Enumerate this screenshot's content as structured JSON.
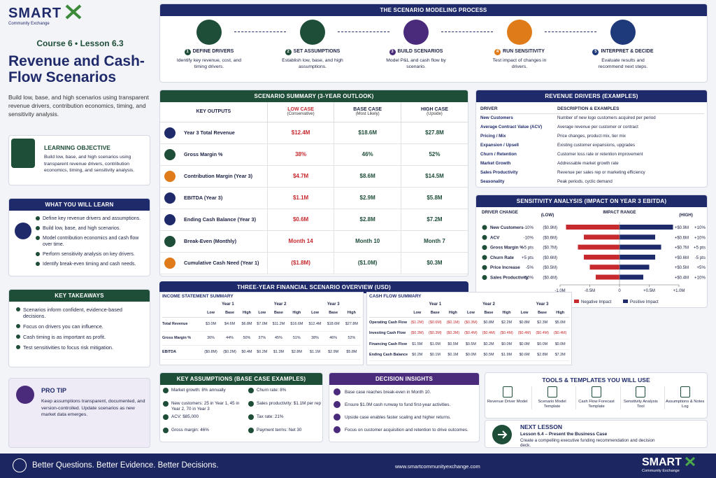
{
  "header": {
    "brand": "SMART",
    "brand_sub": "Community Exchange",
    "course": "Course 6 • Lesson 6.3",
    "title": "Revenue and Cash-Flow Scenarios",
    "intro": "Build low, base, and high scenarios using transparent revenue drivers, contribution economics, timing, and sensitivity analysis."
  },
  "objective": {
    "title": "LEARNING OBJECTIVE",
    "text": "Build low, base, and high scenarios using transparent revenue drivers, contribution economics, timing, and sensitivity analysis."
  },
  "learn": {
    "title": "WHAT YOU WILL LEARN",
    "items": [
      "Define key revenue drivers and assumptions.",
      "Build low, base, and high scenarios.",
      "Model contribution economics and cash flow over time.",
      "Perform sensitivity analysis on key drivers.",
      "Identify break-even timing and cash needs."
    ]
  },
  "takeaways": {
    "title": "KEY TAKEAWAYS",
    "items": [
      "Scenarios inform confident, evidence-based decisions.",
      "Focus on drivers you can influence.",
      "Cash timing is as important as profit.",
      "Test sensitivities to focus risk mitigation."
    ]
  },
  "tip": {
    "title": "PRO TIP",
    "text": "Keep assumptions transparent, documented, and version-controlled. Update scenarios as new market data emerges."
  },
  "process": {
    "title": "THE SCENARIO MODELING PROCESS",
    "steps": [
      {
        "num": 1,
        "title": "DEFINE DRIVERS",
        "text": "Identify key revenue, cost, and timing drivers."
      },
      {
        "num": 2,
        "title": "SET ASSUMPTIONS",
        "text": "Establish low, base, and high assumptions."
      },
      {
        "num": 3,
        "title": "BUILD SCENARIOS",
        "text": "Model P&L and cash flow by scenario."
      },
      {
        "num": 4,
        "title": "RUN SENSITIVITY",
        "text": "Test impact of changes in drivers."
      },
      {
        "num": 5,
        "title": "INTERPRET & DECIDE",
        "text": "Evaluate results and recommend next steps."
      }
    ]
  },
  "summary": {
    "title": "SCENARIO SUMMARY (3-YEAR OUTLOOK)",
    "headers": [
      "KEY OUTPUTS",
      {
        "label": "LOW CASE",
        "sub": "(Conservative)"
      },
      {
        "label": "BASE CASE",
        "sub": "(Most Likely)"
      },
      {
        "label": "HIGH CASE",
        "sub": "(Upside)"
      }
    ],
    "rows": [
      [
        "Year 3 Total Revenue",
        "$12.4M",
        "$18.6M",
        "$27.8M"
      ],
      [
        "Gross Margin %",
        "38%",
        "46%",
        "52%"
      ],
      [
        "Contribution Margin (Year 3)",
        "$4.7M",
        "$8.6M",
        "$14.5M"
      ],
      [
        "EBITDA (Year 3)",
        "$1.1M",
        "$2.9M",
        "$5.8M"
      ],
      [
        "Ending Cash Balance (Year 3)",
        "$0.6M",
        "$2.8M",
        "$7.2M"
      ],
      [
        "Break-Even (Monthly)",
        "Month 14",
        "Month 10",
        "Month 7"
      ],
      [
        "Cumulative Cash Need (Year 1)",
        "($1.8M)",
        "($1.0M)",
        "$0.3M"
      ]
    ]
  },
  "drivers": {
    "title": "REVENUE DRIVERS (EXAMPLES)",
    "headers": [
      "DRIVER",
      "DESCRIPTION & EXAMPLES"
    ],
    "rows": [
      [
        "New Customers",
        "Number of new logo customers acquired per period"
      ],
      [
        "Average Contract Value (ACV)",
        "Average revenue per customer or contract"
      ],
      [
        "Pricing / Mix",
        "Price changes, product mix, tier mix"
      ],
      [
        "Expansion / Upsell",
        "Existing customer expansions, upgrades"
      ],
      [
        "Churn / Retention",
        "Customer loss rate or retention improvement"
      ],
      [
        "Market Growth",
        "Addressable market growth rate"
      ],
      [
        "Sales Productivity",
        "Revenue per sales rep or marketing efficiency"
      ],
      [
        "Seasonality",
        "Peak periods, cyclic demand"
      ]
    ]
  },
  "chart_data": {
    "type": "tornado",
    "title": "SENSITIVITY ANALYSIS (IMPACT ON YEAR 3 EBITDA)",
    "driver_change_label": "DRIVER CHANGE",
    "low_label": "(LOW)",
    "range_label": "IMPACT RANGE",
    "high_label": "(HIGH)",
    "categories": [
      "New Customers",
      "ACV",
      "Gross Margin %",
      "Churn Rate",
      "Price Increase",
      "Sales Productivity"
    ],
    "low_changes": [
      "-10%",
      "-10%",
      "-5 pts",
      "+5 pts",
      "-5%",
      "-10%"
    ],
    "high_changes": [
      "+10%",
      "+10%",
      "+5 pts",
      "-5 pts",
      "+5%",
      "+10%"
    ],
    "series": [
      {
        "name": "Negative Impact",
        "color": "#c62a2f",
        "values": [
          -0.9,
          -0.6,
          -0.7,
          -0.6,
          -0.5,
          -0.4
        ],
        "value_labels": [
          "($0.9M)",
          "($0.6M)",
          "($0.7M)",
          "($0.6M)",
          "($0.5M)",
          "($0.4M)"
        ]
      },
      {
        "name": "Positive Impact",
        "color": "#1f2a6b",
        "values": [
          0.9,
          0.6,
          0.7,
          0.6,
          0.5,
          0.4
        ],
        "value_labels": [
          "+$0.9M",
          "+$0.6M",
          "+$0.7M",
          "+$0.6M",
          "+$0.5M",
          "+$0.4M"
        ]
      }
    ],
    "xlim": [
      -1.0,
      1.0
    ],
    "xticks": [
      {
        "value": -1.0,
        "label": "-1.0M"
      },
      {
        "value": -0.5,
        "label": "-0.5M"
      },
      0,
      {
        "value": 0.5,
        "label": "+0.5M"
      },
      {
        "value": 1.0,
        "label": "+1.0M"
      }
    ]
  },
  "overview": {
    "title": "THREE-YEAR FINANCIAL SCENARIO OVERVIEW (USD)",
    "years": [
      "Year 1",
      "Year 2",
      "Year 3"
    ],
    "scenarios": [
      "Low",
      "Base",
      "High"
    ],
    "tables": [
      {
        "title": "INCOME STATEMENT SUMMARY",
        "rows": [
          {
            "label": "Total Revenue",
            "values": [
              "$3.0M",
              "$4.6M",
              "$6.8M",
              "$7.0M",
              "$11.2M",
              "$16.6M",
              "$12.4M",
              "$18.6M",
              "$27.8M"
            ]
          },
          {
            "label": "Gross Margin %",
            "values": [
              "36%",
              "44%",
              "50%",
              "37%",
              "45%",
              "51%",
              "38%",
              "46%",
              "52%"
            ]
          },
          {
            "label": "EBITDA",
            "values": [
              "($0.8M)",
              "($0.2M)",
              "$0.4M",
              "$0.2M",
              "$1.3M",
              "$2.8M",
              "$1.1M",
              "$2.9M",
              "$5.8M"
            ]
          }
        ]
      },
      {
        "title": "CASH FLOW SUMMARY",
        "rows": [
          {
            "label": "Operating Cash Flow",
            "values": [
              "($1.2M)",
              "($0.6M)",
              "($0.1M)",
              "($0.3M)",
              "$0.8M",
              "$2.2M",
              "$0.8M",
              "$2.3M",
              "$5.0M"
            ]
          },
          {
            "label": "Investing Cash Flow",
            "values": [
              "($0.3M)",
              "($0.3M)",
              "($0.3M)",
              "($0.4M)",
              "($0.4M)",
              "($0.4M)",
              "($0.4M)",
              "($0.4M)",
              "($0.4M)"
            ]
          },
          {
            "label": "Financing Cash Flow",
            "values": [
              "$1.5M",
              "$1.0M",
              "$0.5M",
              "$0.5M",
              "$0.2M",
              "$0.0M",
              "$0.0M",
              "$0.0M",
              "$0.0M"
            ]
          },
          {
            "label": "Ending Cash Balance",
            "values": [
              "$0.2M",
              "$0.1M",
              "$0.1M",
              "$0.0M",
              "$0.5M",
              "$1.9M",
              "$0.6M",
              "$2.8M",
              "$7.2M"
            ]
          }
        ]
      }
    ]
  },
  "assumptions": {
    "title": "KEY ASSUMPTIONS (BASE CASE EXAMPLES)",
    "items": [
      "Market growth: 8% annually",
      "Churn rate: 8%",
      "New customers: 25 in Year 1, 45 in Year 2, 70 in Year 3",
      "Sales productivity: $1.1M per rep",
      "ACV: $85,000",
      "Tax rate: 21%",
      "Gross margin: 46%",
      "Payment terms: Net 30"
    ]
  },
  "insights": {
    "title": "DECISION INSIGHTS",
    "items": [
      "Base case reaches break-even in Month 10.",
      "Ensure $1.0M cash runway to fund first-year activities.",
      "Upside case enables faster scaling and higher returns.",
      "Focus on customer acquisition and retention to drive outcomes."
    ]
  },
  "tools": {
    "title": "TOOLS & TEMPLATES YOU WILL USE",
    "items": [
      "Revenue Driver Model",
      "Scenario Model Template",
      "Cash Flow Forecast Template",
      "Sensitivity Analysis Tool",
      "Assumptions & Notes Log"
    ]
  },
  "next": {
    "title": "NEXT LESSON",
    "lesson": "Lesson 6.4 – Present the Business Case",
    "text": "Create a compelling executive funding recommendation and decision deck."
  },
  "footer": {
    "tagline": "Better Questions. Better Evidence. Better Decisions.",
    "url": "www.smartcommunityexchange.com"
  }
}
